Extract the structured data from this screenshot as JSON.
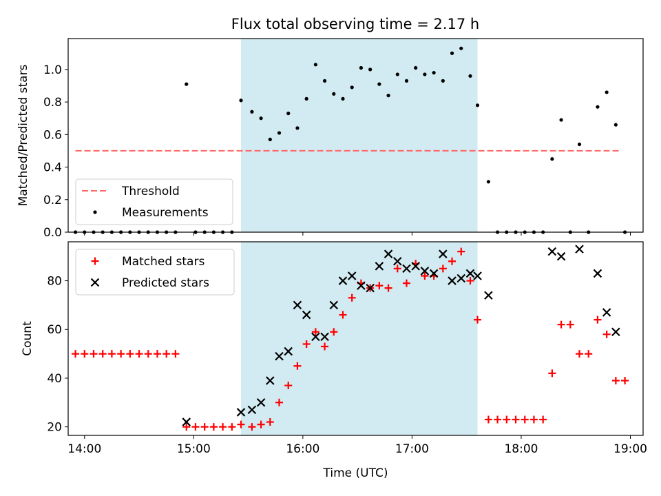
{
  "title": "Flux total observing time = 2.17 h",
  "colors": {
    "band": "#add8e6",
    "threshold": "#ff6666",
    "measurement": "#000000",
    "matched": "#ff0000",
    "predicted": "#000000"
  },
  "chart_data": [
    {
      "type": "scatter",
      "ylabel": "Matched/Predicted stars",
      "ylim": [
        0,
        1.19
      ],
      "yticks": [
        0,
        0.2,
        0.4,
        0.6,
        0.8,
        1.0
      ],
      "ytick_labels": [
        "0.0",
        "0.2",
        "0.4",
        "0.6",
        "0.8",
        "1.0"
      ],
      "xlim": [
        "13:51",
        "19:07"
      ],
      "xticks": [
        "14:00",
        "15:00",
        "16:00",
        "17:00",
        "18:00",
        "19:00"
      ],
      "highlight_band": [
        "15:26",
        "17:36"
      ],
      "threshold": {
        "name": "Threshold",
        "x": [
          "13:55",
          "18:55"
        ],
        "y": 0.5
      },
      "legend": {
        "position": "lower left",
        "entries": [
          "Threshold",
          "Measurements"
        ]
      },
      "series": [
        {
          "name": "Measurements",
          "points": [
            [
              "13:55",
              0.0
            ],
            [
              "14:00",
              0.0
            ],
            [
              "14:05",
              0.0
            ],
            [
              "14:10",
              0.0
            ],
            [
              "14:15",
              0.0
            ],
            [
              "14:20",
              0.0
            ],
            [
              "14:25",
              0.0
            ],
            [
              "14:30",
              0.0
            ],
            [
              "14:35",
              0.0
            ],
            [
              "14:40",
              0.0
            ],
            [
              "14:45",
              0.0
            ],
            [
              "14:50",
              0.0
            ],
            [
              "14:56",
              0.91
            ],
            [
              "15:01",
              0.0
            ],
            [
              "15:06",
              0.0
            ],
            [
              "15:11",
              0.0
            ],
            [
              "15:16",
              0.0
            ],
            [
              "15:21",
              0.0
            ],
            [
              "15:26",
              0.81
            ],
            [
              "15:32",
              0.74
            ],
            [
              "15:37",
              0.7
            ],
            [
              "15:42",
              0.57
            ],
            [
              "15:47",
              0.61
            ],
            [
              "15:52",
              0.73
            ],
            [
              "15:57",
              0.64
            ],
            [
              "16:02",
              0.82
            ],
            [
              "16:07",
              1.03
            ],
            [
              "16:12",
              0.93
            ],
            [
              "16:17",
              0.85
            ],
            [
              "16:22",
              0.82
            ],
            [
              "16:27",
              0.89
            ],
            [
              "16:32",
              1.01
            ],
            [
              "16:37",
              1.0
            ],
            [
              "16:42",
              0.91
            ],
            [
              "16:47",
              0.84
            ],
            [
              "16:52",
              0.97
            ],
            [
              "16:57",
              0.93
            ],
            [
              "17:02",
              1.01
            ],
            [
              "17:07",
              0.97
            ],
            [
              "17:12",
              0.98
            ],
            [
              "17:17",
              0.93
            ],
            [
              "17:22",
              1.1
            ],
            [
              "17:27",
              1.13
            ],
            [
              "17:32",
              0.96
            ],
            [
              "17:36",
              0.78
            ],
            [
              "17:42",
              0.31
            ],
            [
              "17:47",
              0.0
            ],
            [
              "17:52",
              0.0
            ],
            [
              "17:57",
              0.0
            ],
            [
              "18:02",
              0.0
            ],
            [
              "18:07",
              0.0
            ],
            [
              "18:12",
              0.0
            ],
            [
              "18:17",
              0.45
            ],
            [
              "18:22",
              0.69
            ],
            [
              "18:27",
              0.0
            ],
            [
              "18:32",
              0.54
            ],
            [
              "18:37",
              0.0
            ],
            [
              "18:42",
              0.77
            ],
            [
              "18:47",
              0.86
            ],
            [
              "18:52",
              0.66
            ],
            [
              "18:57",
              0.0
            ]
          ]
        }
      ]
    },
    {
      "type": "scatter",
      "xlabel": "Time (UTC)",
      "ylabel": "Count",
      "ylim": [
        16.5,
        96
      ],
      "yticks": [
        20,
        40,
        60,
        80
      ],
      "ytick_labels": [
        "20",
        "40",
        "60",
        "80"
      ],
      "xlim": [
        "13:51",
        "19:07"
      ],
      "xticks": [
        "14:00",
        "15:00",
        "16:00",
        "17:00",
        "18:00",
        "19:00"
      ],
      "xtick_labels": [
        "14:00",
        "15:00",
        "16:00",
        "17:00",
        "18:00",
        "19:00"
      ],
      "highlight_band": [
        "15:26",
        "17:36"
      ],
      "legend": {
        "position": "upper left",
        "entries": [
          "Matched stars",
          "Predicted stars"
        ]
      },
      "series": [
        {
          "name": "Matched stars",
          "points": [
            [
              "13:55",
              50
            ],
            [
              "14:00",
              50
            ],
            [
              "14:05",
              50
            ],
            [
              "14:10",
              50
            ],
            [
              "14:15",
              50
            ],
            [
              "14:20",
              50
            ],
            [
              "14:25",
              50
            ],
            [
              "14:30",
              50
            ],
            [
              "14:35",
              50
            ],
            [
              "14:40",
              50
            ],
            [
              "14:45",
              50
            ],
            [
              "14:50",
              50
            ],
            [
              "14:56",
              20
            ],
            [
              "15:01",
              20
            ],
            [
              "15:06",
              20
            ],
            [
              "15:11",
              20
            ],
            [
              "15:16",
              20
            ],
            [
              "15:21",
              20
            ],
            [
              "15:26",
              21
            ],
            [
              "15:32",
              20
            ],
            [
              "15:37",
              21
            ],
            [
              "15:42",
              22
            ],
            [
              "15:47",
              30
            ],
            [
              "15:52",
              37
            ],
            [
              "15:57",
              45
            ],
            [
              "16:02",
              54
            ],
            [
              "16:07",
              59
            ],
            [
              "16:12",
              53
            ],
            [
              "16:17",
              59
            ],
            [
              "16:22",
              66
            ],
            [
              "16:27",
              73
            ],
            [
              "16:32",
              79
            ],
            [
              "16:37",
              77
            ],
            [
              "16:42",
              78
            ],
            [
              "16:47",
              77
            ],
            [
              "16:52",
              85
            ],
            [
              "16:57",
              79
            ],
            [
              "17:02",
              87
            ],
            [
              "17:07",
              82
            ],
            [
              "17:12",
              82
            ],
            [
              "17:17",
              85
            ],
            [
              "17:22",
              88
            ],
            [
              "17:27",
              92
            ],
            [
              "17:32",
              80
            ],
            [
              "17:36",
              64
            ],
            [
              "17:42",
              23
            ],
            [
              "17:47",
              23
            ],
            [
              "17:52",
              23
            ],
            [
              "17:57",
              23
            ],
            [
              "18:02",
              23
            ],
            [
              "18:07",
              23
            ],
            [
              "18:12",
              23
            ],
            [
              "18:17",
              42
            ],
            [
              "18:22",
              62
            ],
            [
              "18:27",
              62
            ],
            [
              "18:32",
              50
            ],
            [
              "18:37",
              50
            ],
            [
              "18:42",
              64
            ],
            [
              "18:47",
              58
            ],
            [
              "18:52",
              39
            ],
            [
              "18:57",
              39
            ]
          ]
        },
        {
          "name": "Predicted stars",
          "points": [
            [
              "14:56",
              22
            ],
            [
              "15:26",
              26
            ],
            [
              "15:32",
              27
            ],
            [
              "15:37",
              30
            ],
            [
              "15:42",
              39
            ],
            [
              "15:47",
              49
            ],
            [
              "15:52",
              51
            ],
            [
              "15:57",
              70
            ],
            [
              "16:02",
              66
            ],
            [
              "16:07",
              57
            ],
            [
              "16:12",
              57
            ],
            [
              "16:17",
              70
            ],
            [
              "16:22",
              80
            ],
            [
              "16:27",
              82
            ],
            [
              "16:32",
              78
            ],
            [
              "16:37",
              77
            ],
            [
              "16:42",
              86
            ],
            [
              "16:47",
              91
            ],
            [
              "16:52",
              88
            ],
            [
              "16:57",
              85
            ],
            [
              "17:02",
              86
            ],
            [
              "17:07",
              84
            ],
            [
              "17:12",
              83
            ],
            [
              "17:17",
              91
            ],
            [
              "17:22",
              80
            ],
            [
              "17:27",
              81
            ],
            [
              "17:32",
              83
            ],
            [
              "17:36",
              82
            ],
            [
              "17:42",
              74
            ],
            [
              "18:17",
              92
            ],
            [
              "18:22",
              90
            ],
            [
              "18:32",
              93
            ],
            [
              "18:42",
              83
            ],
            [
              "18:47",
              67
            ],
            [
              "18:52",
              59
            ]
          ]
        }
      ]
    }
  ]
}
